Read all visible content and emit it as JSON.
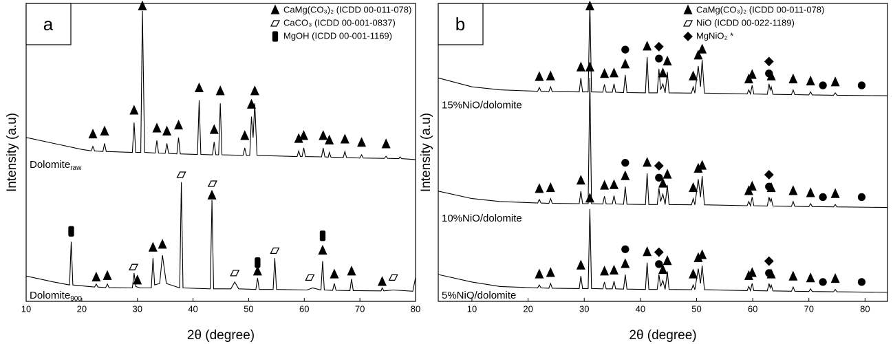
{
  "chart_data": [
    {
      "type": "line",
      "panel_label": "a",
      "x_label": "2θ (degree)",
      "y_label": "Intensity (a.u)",
      "xlim": [
        10,
        80
      ],
      "xticks": [
        10,
        20,
        30,
        40,
        50,
        60,
        70,
        80
      ],
      "ylim": [
        0,
        100
      ],
      "color": "#000000",
      "legend": [
        {
          "label": "CaMg(CO₃)₂ (ICDD 00-011-078)",
          "symbol": "triangle"
        },
        {
          "label": "CaCO₃ (ICDD 00-001-0837)",
          "symbol": "parallelogram"
        },
        {
          "label": "MgOH (ICDD 00-001-1169)",
          "symbol": "bar"
        }
      ],
      "series": [
        {
          "name": "Dolomite",
          "name_sub": "raw",
          "x": [
            10,
            15,
            20,
            21.7,
            22,
            22.3,
            23.8,
            24.1,
            24.4,
            29.1,
            29.4,
            29.7,
            30.6,
            30.9,
            31.3,
            33.2,
            33.5,
            33.8,
            35,
            35.3,
            35.6,
            37.1,
            37.4,
            37.7,
            40.8,
            41.1,
            41.4,
            43.5,
            43.8,
            44.1,
            44.6,
            44.9,
            45.2,
            49,
            49.3,
            49.6,
            50.2,
            50.5,
            50.8,
            51.1,
            51.5,
            58.7,
            59,
            59.3,
            59.6,
            59.9,
            60.2,
            63.1,
            63.4,
            63.7,
            64.3,
            64.5,
            64.8,
            67,
            67.3,
            67.6,
            70,
            70.3,
            70.6,
            74.4,
            74.7,
            75,
            77,
            77.2,
            77.5,
            80
          ],
          "values": [
            55,
            53,
            51,
            50.5,
            52,
            50.5,
            50.3,
            53,
            50.3,
            50,
            60,
            50,
            50,
            97.5,
            50,
            49.8,
            54,
            49.8,
            49.7,
            53,
            49.7,
            49.5,
            55,
            49.5,
            49.3,
            67.5,
            49.3,
            49.2,
            53.5,
            49.2,
            49.2,
            66.5,
            49.2,
            49,
            51.5,
            49,
            49,
            62,
            55,
            66.5,
            49,
            48.6,
            50.5,
            48.6,
            48.6,
            51.5,
            48.6,
            48.5,
            51.5,
            48.5,
            48.4,
            50,
            48.4,
            48.3,
            50.3,
            48.3,
            48.1,
            49.2,
            48.1,
            48,
            48.7,
            48,
            47.9,
            48.5,
            47.9,
            47.6
          ],
          "markers": {
            "triangle": {
              "x": [
                22,
                24.1,
                29.4,
                30.9,
                33.5,
                35.3,
                37.4,
                41.1,
                43.8,
                44.9,
                49.3,
                50.5,
                51.1,
                59,
                59.9,
                63.4,
                64.5,
                67.3,
                70.3,
                74.7
              ],
              "y": [
                56,
                57,
                64,
                99,
                58,
                57,
                59,
                71.5,
                57.5,
                70.5,
                55.5,
                66,
                70.5,
                54.5,
                55.5,
                55.5,
                54,
                54.3,
                53.2,
                52.7
              ]
            }
          }
        },
        {
          "name": "Dolomite",
          "name_sub": "900",
          "x": [
            10,
            15,
            17.8,
            18.1,
            18.4,
            22.3,
            22.6,
            22.9,
            24.3,
            24.6,
            24.9,
            29.1,
            29.4,
            29.7,
            30.5,
            32.5,
            32.8,
            33.1,
            34,
            34.5,
            35.2,
            37.6,
            37.9,
            38.2,
            43.1,
            43.4,
            43.7,
            46.8,
            47.5,
            48.2,
            51.3,
            51.6,
            51.9,
            54.4,
            54.7,
            55,
            60.5,
            61.5,
            63,
            63.3,
            63.6,
            65.1,
            65.4,
            65.7,
            68.2,
            68.5,
            68.8,
            73.8,
            74,
            74.3,
            76,
            79.5,
            80
          ],
          "values": [
            8.5,
            6.5,
            5.5,
            20,
            5.5,
            4.8,
            5.8,
            4.8,
            4.6,
            5.8,
            4.6,
            4.5,
            9.5,
            5,
            4.5,
            4.5,
            14.5,
            5.5,
            6,
            15.5,
            6,
            4.5,
            40,
            4.5,
            4.2,
            34,
            4.2,
            4.2,
            6.5,
            4.2,
            4,
            7.8,
            4,
            4,
            14.5,
            4,
            3.8,
            4.5,
            3.8,
            13.5,
            3.8,
            3.7,
            6,
            3.7,
            3.6,
            7.5,
            3.6,
            3.5,
            4.5,
            3.5,
            3.8,
            3.4,
            8
          ],
          "markers": {
            "triangle": {
              "x": [
                22.6,
                24.6,
                30,
                32.8,
                34.5,
                43.4,
                51.6,
                63.3,
                65.4,
                68.5,
                74
              ],
              "y": [
                8,
                8.5,
                7,
                18,
                19,
                35.5,
                10,
                17,
                9,
                10,
                6.5
              ]
            },
            "parallelogram": {
              "x": [
                29.3,
                37.9,
                43.5,
                47.5,
                54.7,
                61,
                76
              ],
              "y": [
                11.5,
                42.5,
                39.5,
                9.5,
                17,
                8,
                8
              ]
            },
            "bar": {
              "x": [
                18.1,
                51.6,
                63.3
              ],
              "y": [
                23.5,
                13,
                22
              ]
            }
          }
        }
      ]
    },
    {
      "type": "line",
      "panel_label": "b",
      "x_label": "2θ (degree)",
      "y_label": "Intensity (a.u)",
      "xlim": [
        4,
        84
      ],
      "xticks": [
        10,
        20,
        30,
        40,
        50,
        60,
        70,
        80
      ],
      "ylim": [
        0,
        100
      ],
      "color": "#000000",
      "legend": [
        {
          "label": "CaMg(CO₃)₂ (ICDD 00-011-078)",
          "symbol": "triangle"
        },
        {
          "label": "NiO (ICDD 00-022-1189)",
          "symbol": "parallelogram"
        },
        {
          "label": "MgNiO₂ *",
          "symbol": "diamond"
        }
      ],
      "series": [
        {
          "name": "15%NiO/dolomite",
          "x": [
            4,
            10,
            15,
            21.7,
            22,
            22.3,
            23.7,
            24,
            24.3,
            29.1,
            29.4,
            29.7,
            30.7,
            31,
            31.3,
            33.3,
            33.6,
            33.9,
            35,
            35.3,
            35.6,
            37,
            37.3,
            37.6,
            40.9,
            41.2,
            41.5,
            43,
            43.3,
            43.6,
            44,
            44.4,
            44.8,
            45.1,
            49.1,
            49.4,
            49.7,
            50.3,
            50.7,
            51,
            51.4,
            59,
            59.3,
            59.6,
            59.9,
            60.2,
            62.6,
            62.9,
            63.1,
            63.3,
            63.6,
            66.9,
            67.2,
            67.5,
            70,
            70.3,
            70.6,
            74.4,
            74.7,
            75,
            84
          ],
          "values": [
            75,
            72,
            71,
            70.5,
            71.8,
            70.5,
            70.4,
            72,
            70.4,
            70.3,
            75,
            70.3,
            70.3,
            100,
            70.3,
            70.2,
            72.8,
            70.2,
            70.2,
            73,
            70.2,
            70.1,
            76,
            70.1,
            70,
            82,
            70,
            70,
            78,
            71,
            73,
            70,
            77,
            70,
            69.9,
            72,
            69.9,
            79,
            72,
            81,
            69.9,
            69.6,
            71,
            69.6,
            72.5,
            69.6,
            69.5,
            73,
            71,
            72,
            69.5,
            69.4,
            71,
            69.4,
            69.3,
            70.3,
            69.3,
            69.2,
            70,
            69.2,
            69
          ],
          "markers": {
            "triangle": {
              "x": [
                22,
                24,
                29.4,
                31,
                33.6,
                35.3,
                37.3,
                41.2,
                44,
                44.8,
                49.4,
                50.3,
                51,
                59.3,
                59.9,
                63.3,
                67.2,
                70.3,
                74.7
              ],
              "y": [
                75.3,
                75.5,
                78.5,
                99,
                76.3,
                76.5,
                79.5,
                85.5,
                76.5,
                80.5,
                75.5,
                82.5,
                84.5,
                74.5,
                76,
                75.5,
                74.5,
                73.8,
                73.5
              ]
            },
            "circle": {
              "x": [
                37.3,
                43.3,
                62.9,
                72.5,
                79.4
              ],
              "y": [
                84.5,
                81.5,
                76.5,
                72.5,
                72.5
              ]
            },
            "diamond": {
              "x": [
                43.3,
                62.9
              ],
              "y": [
                85.5,
                80.5
              ]
            }
          }
        },
        {
          "name": "10%NiO/dolomite",
          "x": [
            4,
            10,
            15,
            21.7,
            22,
            22.3,
            23.7,
            24,
            24.3,
            29.1,
            29.4,
            29.7,
            30.7,
            31,
            31.3,
            33.3,
            33.6,
            33.9,
            35,
            35.3,
            35.6,
            37,
            37.3,
            37.6,
            40.9,
            41.2,
            41.5,
            43,
            43.3,
            43.6,
            44,
            44.4,
            44.8,
            45.1,
            49.1,
            49.4,
            49.7,
            50.3,
            50.7,
            51,
            51.4,
            59,
            59.3,
            59.6,
            59.9,
            60.2,
            62.6,
            62.9,
            63.1,
            63.3,
            63.6,
            66.9,
            67.2,
            67.5,
            70,
            70.3,
            70.6,
            74.4,
            74.7,
            75,
            84
          ],
          "values": [
            37,
            34.5,
            33.5,
            33,
            34.2,
            33,
            32.9,
            34.5,
            32.9,
            32.8,
            37,
            32.8,
            32.8,
            75,
            32.8,
            32.7,
            35.3,
            32.7,
            32.7,
            35.5,
            32.7,
            32.6,
            38.5,
            32.6,
            32.5,
            43,
            32.5,
            32.5,
            38,
            33.5,
            36,
            32.5,
            39,
            32.5,
            32.4,
            34.5,
            32.4,
            41,
            35,
            42,
            32.4,
            32.1,
            33.5,
            32.1,
            35,
            32.1,
            32,
            35,
            33.5,
            34.5,
            32,
            31.9,
            33.5,
            31.9,
            31.8,
            32.8,
            31.8,
            31.7,
            32.5,
            31.7,
            31.5
          ],
          "markers": {
            "triangle": {
              "x": [
                22,
                24,
                29.4,
                31,
                33.6,
                35.3,
                37.3,
                41.2,
                44,
                44.8,
                49.4,
                50.3,
                51,
                59.3,
                59.9,
                63.3,
                67.2,
                70.3,
                74.7
              ],
              "y": [
                37.7,
                38,
                40.5,
                78.5,
                38.8,
                39,
                42,
                46.5,
                39.5,
                42.5,
                38,
                44.5,
                45.5,
                37,
                38.5,
                38,
                37,
                36.3,
                36
              ]
            },
            "circle": {
              "x": [
                37.3,
                43.3,
                62.9,
                72.5,
                79.4
              ],
              "y": [
                46.5,
                41.5,
                38.5,
                35,
                35
              ]
            },
            "diamond": {
              "x": [
                43.3,
                62.9
              ],
              "y": [
                45.5,
                42.5
              ]
            }
          }
        },
        {
          "name": "5%NiO/dolomite",
          "x": [
            4,
            10,
            15,
            21.7,
            22,
            22.3,
            23.7,
            24,
            24.3,
            29.1,
            29.4,
            29.7,
            30.7,
            31,
            31.3,
            33.3,
            33.6,
            33.9,
            35,
            35.3,
            35.6,
            37,
            37.3,
            37.6,
            40.9,
            41.2,
            41.5,
            43,
            43.3,
            43.6,
            44,
            44.4,
            44.8,
            45.1,
            49.1,
            49.4,
            49.7,
            50.3,
            50.7,
            51,
            51.4,
            59,
            59.3,
            59.6,
            59.9,
            60.2,
            62.6,
            62.9,
            63.1,
            63.3,
            63.6,
            66.9,
            67.2,
            67.5,
            70,
            70.3,
            70.6,
            74.4,
            74.7,
            75,
            84
          ],
          "values": [
            9,
            6.5,
            5,
            4.5,
            5.5,
            4.5,
            4.4,
            6,
            4.4,
            4.3,
            8.5,
            4.3,
            4.3,
            31,
            4.3,
            4.2,
            6.5,
            4.2,
            4.2,
            6.8,
            4.2,
            4.1,
            9,
            4.1,
            4,
            13,
            4,
            4,
            9,
            5,
            7,
            4,
            10,
            4,
            3.9,
            5.5,
            3.9,
            11,
            6,
            12,
            3.9,
            3.6,
            5,
            3.6,
            6,
            3.6,
            3.5,
            6,
            4.5,
            5.5,
            3.5,
            3.4,
            4.8,
            3.4,
            3.3,
            4.2,
            3.3,
            3.2,
            4,
            3.2,
            3
          ],
          "markers": {
            "triangle": {
              "x": [
                22,
                24,
                29.4,
                31,
                33.6,
                35.3,
                37.3,
                41.2,
                44,
                44.8,
                49.4,
                50.3,
                51,
                59.3,
                59.9,
                63.3,
                67.2,
                70.3,
                74.7
              ],
              "y": [
                9,
                9.5,
                12,
                34.5,
                10,
                10.3,
                12.5,
                16.5,
                10.5,
                13.5,
                9,
                14.5,
                15.5,
                8.5,
                9.5,
                9,
                8.3,
                7.7,
                7.5
              ]
            },
            "circle": {
              "x": [
                37.3,
                43.3,
                62.9,
                72.5,
                79.4
              ],
              "y": [
                17.5,
                12.5,
                9.5,
                6.5,
                6.5
              ]
            },
            "diamond": {
              "x": [
                43.3,
                62.9
              ],
              "y": [
                16.5,
                13.5
              ]
            }
          }
        }
      ]
    }
  ]
}
